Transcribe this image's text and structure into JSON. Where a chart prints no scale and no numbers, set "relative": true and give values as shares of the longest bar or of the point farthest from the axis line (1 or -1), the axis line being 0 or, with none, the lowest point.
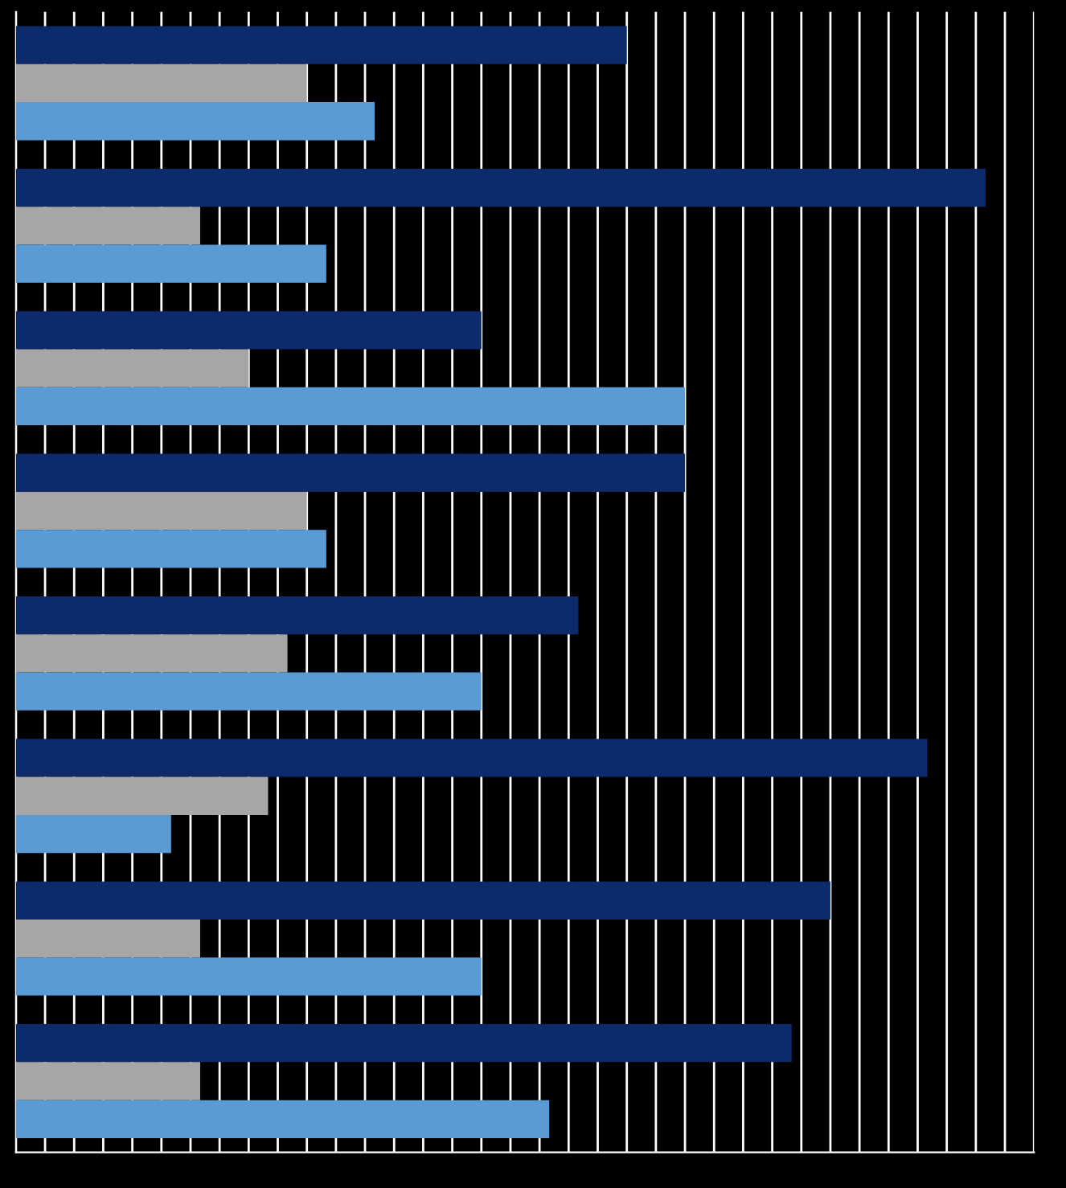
{
  "chart_data": {
    "type": "bar",
    "orientation": "horizontal",
    "relative": true,
    "grid": "x",
    "legend": false,
    "categories": [
      null,
      null,
      null,
      null,
      null,
      null,
      null,
      null
    ],
    "series": [
      {
        "color": "#0d2a6b",
        "values": [
          0.63,
          1.0,
          0.48,
          0.69,
          0.58,
          0.94,
          0.84,
          0.8
        ]
      },
      {
        "color": "#a6a6a6",
        "values": [
          0.3,
          0.19,
          0.24,
          0.3,
          0.28,
          0.26,
          0.19,
          0.19
        ]
      },
      {
        "color": "#5b9bd5",
        "values": [
          0.37,
          0.32,
          0.69,
          0.32,
          0.48,
          0.16,
          0.48,
          0.55
        ]
      }
    ]
  }
}
